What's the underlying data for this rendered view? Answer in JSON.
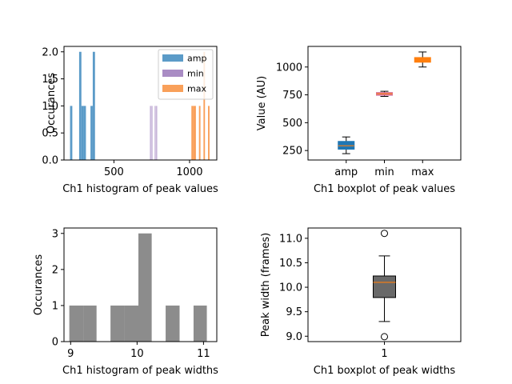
{
  "chart_data": [
    {
      "type": "histogram",
      "xlabel": "Ch1 histogram of peak values",
      "ylabel": "Occurances",
      "xlim": [
        170,
        1180
      ],
      "ylim": [
        0,
        2.1
      ],
      "xticks": [
        "500",
        "1000"
      ],
      "xtick_values": [
        500,
        1000
      ],
      "yticks": [
        "0.0",
        "0.5",
        "1.0",
        "1.5",
        "2.0"
      ],
      "ytick_values": [
        0,
        0.5,
        1,
        1.5,
        2
      ],
      "legend_position": "top-right",
      "series": [
        {
          "name": "amp",
          "color": "#5b9bc8",
          "bin_width": 15,
          "bins": [
            [
              210,
              225,
              1
            ],
            [
              270,
              285,
              2
            ],
            [
              285,
              300,
              1
            ],
            [
              300,
              315,
              1
            ],
            [
              345,
              360,
              1
            ],
            [
              360,
              375,
              2
            ]
          ]
        },
        {
          "name": "min",
          "color": "#a98cc4",
          "bin_width": 5,
          "bins": [
            [
              739,
              744,
              1
            ],
            [
              749,
              754,
              1
            ],
            [
              770,
              775,
              1
            ],
            [
              780,
              785,
              1
            ]
          ]
        },
        {
          "name": "max",
          "color": "#f9a05a",
          "bin_width": 10,
          "bins": [
            [
              1012,
              1022,
              1
            ],
            [
              1022,
              1032,
              1
            ],
            [
              1032,
              1042,
              1
            ],
            [
              1062,
              1072,
              1
            ],
            [
              1092,
              1102,
              2
            ],
            [
              1122,
              1132,
              1
            ]
          ]
        }
      ]
    },
    {
      "type": "boxplot",
      "xlabel": "Ch1 boxplot of peak values",
      "ylabel": "Value (AU)",
      "ylim": [
        165,
        1185
      ],
      "yticks": [
        "250",
        "500",
        "750",
        "1000"
      ],
      "ytick_values": [
        250,
        500,
        750,
        1000
      ],
      "categories": [
        "amp",
        "min",
        "max"
      ],
      "boxes": [
        {
          "whislo": 222,
          "q1": 262,
          "med": 293,
          "q3": 332,
          "whishi": 372,
          "facecolor": "#1f77b4",
          "mediancolor": "#ff7f0e"
        },
        {
          "whislo": 736,
          "q1": 746,
          "med": 760,
          "q3": 771,
          "whishi": 782,
          "facecolor": "#d6739a",
          "mediancolor": "#ff7f0e"
        },
        {
          "whislo": 1000,
          "q1": 1043,
          "med": 1063,
          "q3": 1085,
          "whishi": 1135,
          "facecolor": "#ff7f0e",
          "mediancolor": "#ff7f0e"
        }
      ]
    },
    {
      "type": "histogram",
      "xlabel": "Ch1 histogram of peak widths",
      "ylabel": "Occurances",
      "xlim": [
        8.9,
        11.2
      ],
      "ylim": [
        0,
        3.15
      ],
      "xticks": [
        "9",
        "10",
        "11"
      ],
      "xtick_values": [
        9,
        10,
        11
      ],
      "yticks": [
        "0",
        "1",
        "2",
        "3"
      ],
      "ytick_values": [
        0,
        1,
        2,
        3
      ],
      "series": [
        {
          "color": "#8c8c8c",
          "bins": [
            [
              8.98,
              9.19,
              1
            ],
            [
              9.19,
              9.39,
              1
            ],
            [
              9.6,
              9.81,
              1
            ],
            [
              9.81,
              10.02,
              1
            ],
            [
              10.02,
              10.22,
              3
            ],
            [
              10.43,
              10.64,
              1
            ],
            [
              10.85,
              11.05,
              1
            ]
          ]
        }
      ]
    },
    {
      "type": "boxplot",
      "xlabel": "Ch1 boxplot of peak widths",
      "ylabel": "Peak width (frames)",
      "ylim": [
        8.89,
        11.21
      ],
      "yticks": [
        "9.0",
        "9.5",
        "10.0",
        "10.5",
        "11.0"
      ],
      "ytick_values": [
        9,
        9.5,
        10,
        10.5,
        11
      ],
      "categories": [
        "1"
      ],
      "boxes": [
        {
          "whislo": 9.3,
          "q1": 9.79,
          "med": 10.1,
          "q3": 10.23,
          "whishi": 10.64,
          "fliers": [
            8.99,
            11.1
          ],
          "facecolor": "#696969",
          "mediancolor": "#ff7f0e"
        }
      ]
    }
  ]
}
